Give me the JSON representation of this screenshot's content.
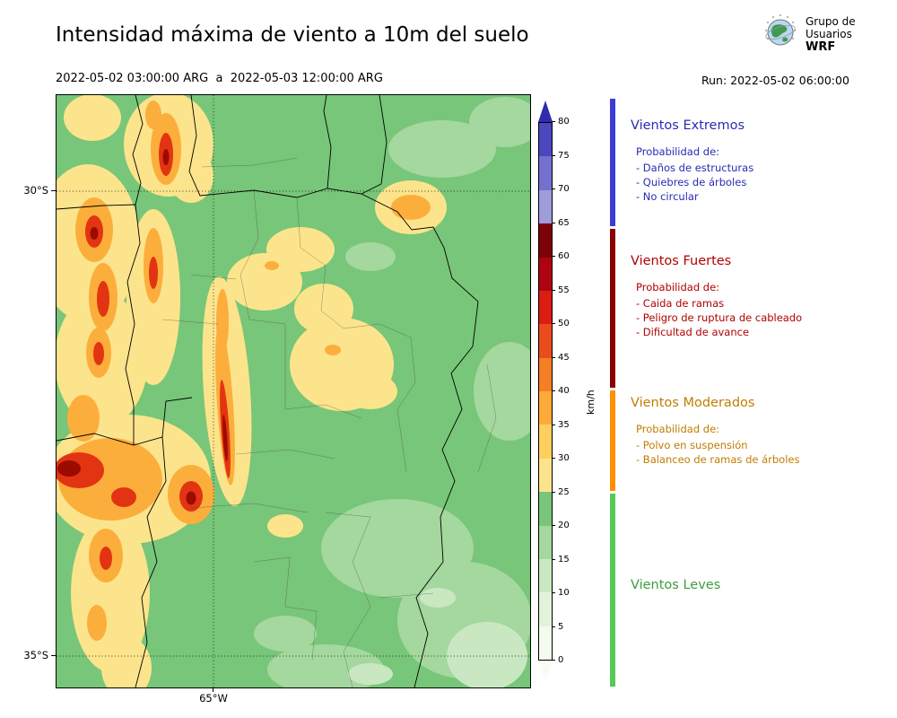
{
  "header": {
    "title": "Intensidad máxima de viento a 10m del suelo",
    "date_range": "2022-05-02 03:00:00 ARG  a  2022-05-03 12:00:00 ARG",
    "run_label": "Run: 2022-05-02 06:00:00",
    "logo": {
      "line1": "Grupo de",
      "line2": "Usuarios",
      "line3": "WRF"
    }
  },
  "map": {
    "y_labels": [
      "30°S",
      "35°S"
    ],
    "x_label": "65°W",
    "base_color": "#78c679"
  },
  "colorbar": {
    "unit": "km/h",
    "max": 80,
    "ticks": [
      0,
      5,
      10,
      15,
      20,
      25,
      30,
      35,
      40,
      45,
      50,
      55,
      60,
      65,
      70,
      75,
      80
    ],
    "segment_colors": [
      "#f4faee",
      "#e2f3db",
      "#c9e8c2",
      "#a4d89e",
      "#78c679",
      "#fce48c",
      "#fdcf5e",
      "#fdaa3a",
      "#f67e24",
      "#ea4c1c",
      "#dc1d12",
      "#b00310",
      "#7e0008",
      "#9e9cdb",
      "#7370cf",
      "#4a47bf"
    ],
    "arrow_top_color": "#2f2cae",
    "arrow_bottom_color": "#f8fcf4"
  },
  "legend": {
    "sections": [
      {
        "title": "Vientos Extremos",
        "text_color": "#2b2bb4",
        "bar_color": "#3c3cd9",
        "intro": "Probabilidad de:",
        "items": [
          "- Daños de estructuras",
          "- Quiebres de árboles",
          "- No circular"
        ]
      },
      {
        "title": "Vientos Fuertes",
        "text_color": "#b20000",
        "bar_color": "#8b0000",
        "intro": "Probabilidad de:",
        "items": [
          "- Caida de ramas",
          "- Peligro de ruptura de cableado",
          "- Dificultad de avance"
        ]
      },
      {
        "title": "Vientos Moderados",
        "text_color": "#c07d00",
        "bar_color": "#ff9000",
        "intro": "Probabilidad de:",
        "items": [
          "- Polvo en suspensión",
          "- Balanceo de ramas de árboles"
        ]
      },
      {
        "title": "Vientos Leves",
        "text_color": "#3d9c3d",
        "bar_color": "#57c957",
        "intro": "",
        "items": []
      }
    ]
  }
}
